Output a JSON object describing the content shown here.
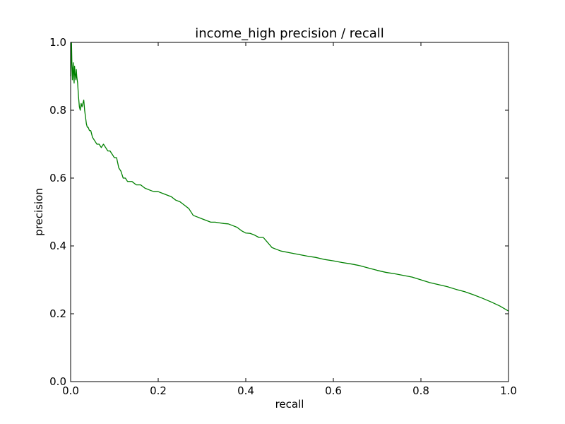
{
  "chart_data": {
    "type": "line",
    "title": "income_high precision / recall",
    "xlabel": "recall",
    "ylabel": "precision",
    "xlim": [
      0.0,
      1.0
    ],
    "ylim": [
      0.0,
      1.0
    ],
    "xticks": [
      "0.0",
      "0.2",
      "0.4",
      "0.6",
      "0.8",
      "1.0"
    ],
    "yticks": [
      "0.0",
      "0.2",
      "0.4",
      "0.6",
      "0.8",
      "1.0"
    ],
    "grid": false,
    "legend": "none",
    "series": [
      {
        "color": "#008000",
        "x": [
          0.0,
          0.002,
          0.003,
          0.004,
          0.005,
          0.006,
          0.007,
          0.008,
          0.009,
          0.01,
          0.011,
          0.012,
          0.013,
          0.014,
          0.015,
          0.016,
          0.017,
          0.018,
          0.02,
          0.022,
          0.024,
          0.026,
          0.028,
          0.03,
          0.032,
          0.034,
          0.036,
          0.038,
          0.04,
          0.043,
          0.046,
          0.05,
          0.055,
          0.06,
          0.065,
          0.07,
          0.075,
          0.08,
          0.085,
          0.09,
          0.095,
          0.1,
          0.105,
          0.11,
          0.115,
          0.12,
          0.125,
          0.13,
          0.14,
          0.15,
          0.16,
          0.17,
          0.18,
          0.19,
          0.2,
          0.21,
          0.22,
          0.23,
          0.24,
          0.25,
          0.26,
          0.27,
          0.28,
          0.29,
          0.3,
          0.31,
          0.32,
          0.33,
          0.34,
          0.35,
          0.36,
          0.37,
          0.38,
          0.39,
          0.4,
          0.41,
          0.42,
          0.43,
          0.44,
          0.45,
          0.46,
          0.47,
          0.48,
          0.5,
          0.52,
          0.54,
          0.56,
          0.58,
          0.6,
          0.62,
          0.64,
          0.66,
          0.68,
          0.7,
          0.72,
          0.74,
          0.76,
          0.78,
          0.8,
          0.82,
          0.84,
          0.86,
          0.88,
          0.9,
          0.92,
          0.94,
          0.96,
          0.98,
          1.0
        ],
        "y": [
          0.9,
          1.0,
          0.93,
          0.89,
          0.92,
          0.94,
          0.9,
          0.88,
          0.93,
          0.91,
          0.9,
          0.89,
          0.92,
          0.9,
          0.89,
          0.88,
          0.86,
          0.84,
          0.81,
          0.8,
          0.82,
          0.81,
          0.82,
          0.83,
          0.8,
          0.78,
          0.76,
          0.75,
          0.75,
          0.74,
          0.74,
          0.72,
          0.71,
          0.7,
          0.7,
          0.69,
          0.7,
          0.69,
          0.68,
          0.68,
          0.67,
          0.66,
          0.66,
          0.63,
          0.62,
          0.6,
          0.6,
          0.59,
          0.59,
          0.58,
          0.58,
          0.57,
          0.565,
          0.56,
          0.56,
          0.555,
          0.55,
          0.545,
          0.535,
          0.53,
          0.52,
          0.51,
          0.49,
          0.485,
          0.48,
          0.475,
          0.47,
          0.47,
          0.468,
          0.466,
          0.465,
          0.46,
          0.455,
          0.445,
          0.438,
          0.437,
          0.432,
          0.425,
          0.425,
          0.41,
          0.395,
          0.39,
          0.385,
          0.38,
          0.375,
          0.37,
          0.366,
          0.36,
          0.356,
          0.351,
          0.347,
          0.342,
          0.335,
          0.328,
          0.322,
          0.318,
          0.313,
          0.308,
          0.3,
          0.292,
          0.286,
          0.28,
          0.272,
          0.265,
          0.256,
          0.246,
          0.235,
          0.223,
          0.208
        ]
      }
    ]
  }
}
